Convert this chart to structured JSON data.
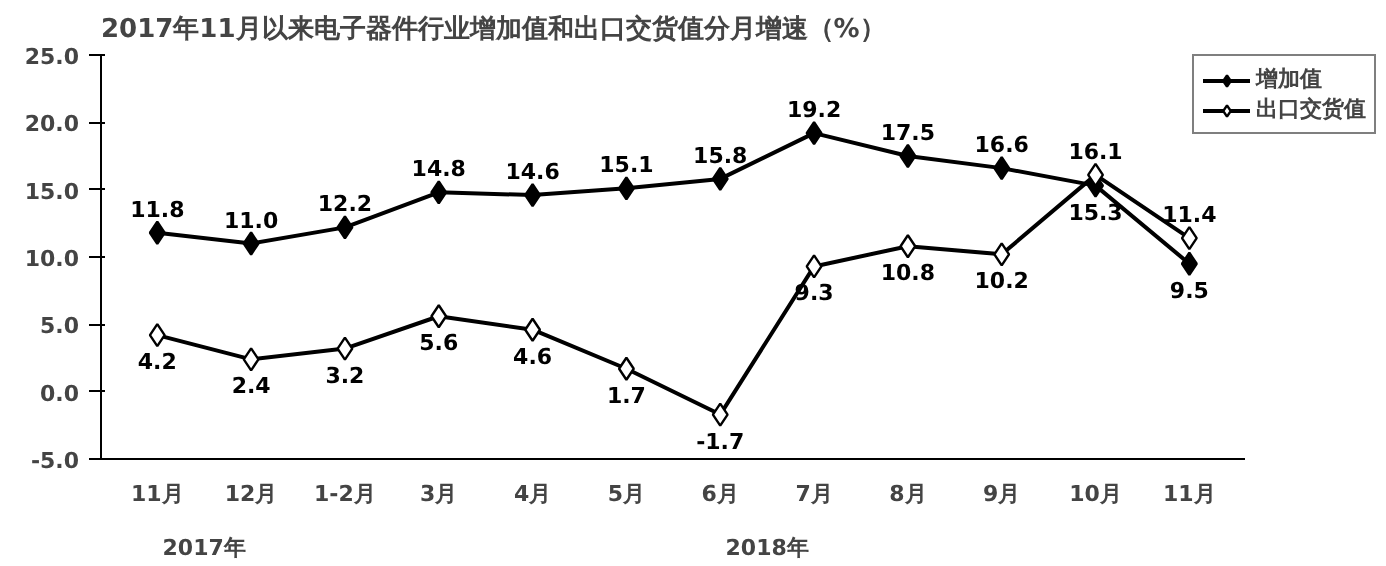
{
  "chart_data": {
    "type": "line",
    "title": "2017年11月以来电子器件行业增加值和出口交货值分月增速（%）",
    "categories": [
      "11月",
      "12月",
      "1-2月",
      "3月",
      "4月",
      "5月",
      "6月",
      "7月",
      "8月",
      "9月",
      "10月",
      "11月"
    ],
    "series": [
      {
        "name": "增加值",
        "color": "#000000",
        "marker": "diamond",
        "values": [
          11.8,
          11.0,
          12.2,
          14.8,
          14.6,
          15.1,
          15.8,
          19.2,
          17.5,
          16.6,
          15.3,
          9.5
        ],
        "value_labels": [
          "11.8",
          "11.0",
          "12.2",
          "14.8",
          "14.6",
          "15.1",
          "15.8",
          "19.2",
          "17.5",
          "16.6",
          "15.3",
          "9.5"
        ]
      },
      {
        "name": "出口交货值",
        "color": "#000000",
        "marker": "diamond_open",
        "values": [
          4.2,
          2.4,
          3.2,
          5.6,
          4.6,
          1.7,
          -1.7,
          9.3,
          10.8,
          10.2,
          16.1,
          11.4
        ],
        "value_labels": [
          "4.2",
          "2.4",
          "3.2",
          "5.6",
          "4.6",
          "1.7",
          "-1.7",
          "9.3",
          "10.8",
          "10.2",
          "16.1",
          "11.4"
        ]
      }
    ],
    "ylim": [
      -5,
      25
    ],
    "yticks": [
      {
        "value": -5,
        "label": "-5.0"
      },
      {
        "value": 0,
        "label": "0.0"
      },
      {
        "value": 5,
        "label": "5.0"
      },
      {
        "value": 10,
        "label": "10.0"
      },
      {
        "value": 15,
        "label": "15.0"
      },
      {
        "value": 20,
        "label": "20.0"
      },
      {
        "value": 25,
        "label": "25.0"
      }
    ],
    "annotations": [
      "2017年",
      "2018年"
    ],
    "legend": "top right",
    "grid": false,
    "line_style": "solid"
  }
}
